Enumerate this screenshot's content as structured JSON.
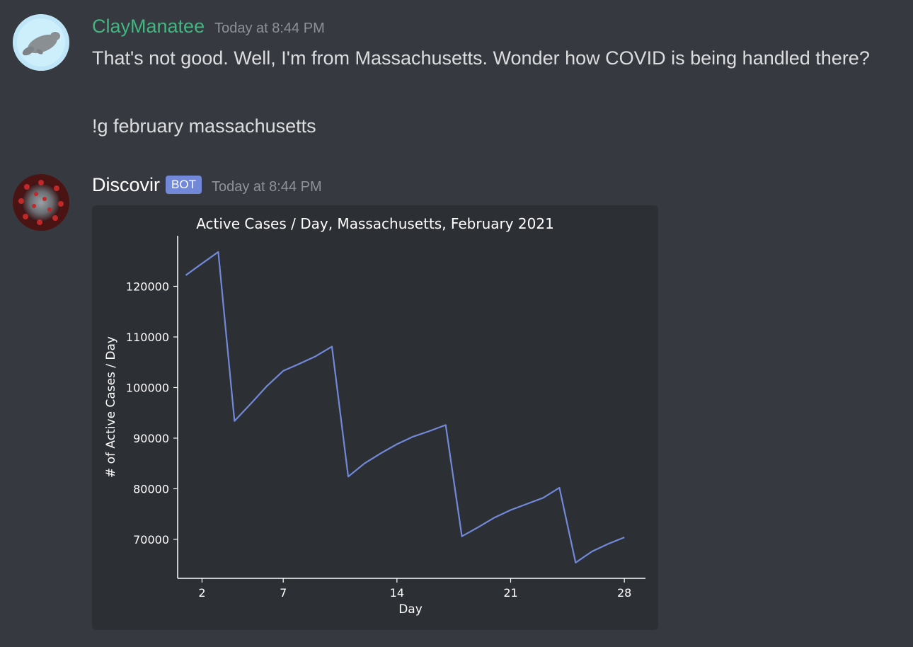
{
  "messages": [
    {
      "username": "ClayManatee",
      "username_color": "#43b581",
      "timestamp": "Today at 8:44 PM",
      "lines": [
        "That's not good. Well, I'm from Massachusetts. Wonder how COVID is being handled there?",
        "!g february massachusetts"
      ],
      "avatar_icon": "manatee-icon"
    },
    {
      "username": "Discovir",
      "username_color": "#ffffff",
      "badge": "BOT",
      "timestamp": "Today at 8:44 PM",
      "avatar_icon": "coronavirus-icon"
    }
  ],
  "chart_data": {
    "type": "line",
    "title": "Active Cases / Day, Massachusetts, February 2021",
    "xlabel": "Day",
    "ylabel": "# of Active Cases / Day",
    "xticks": [
      2,
      7,
      14,
      21,
      28
    ],
    "yticks": [
      70000,
      80000,
      90000,
      100000,
      110000,
      120000
    ],
    "xlim": [
      0.5,
      29.3
    ],
    "ylim": [
      62300,
      130000
    ],
    "line_color": "#7289da",
    "grid": false,
    "series": [
      {
        "x": [
          1,
          2,
          3,
          4,
          5,
          6,
          7,
          8,
          9,
          10,
          11,
          12,
          13,
          14,
          15,
          16,
          17,
          18,
          19,
          20,
          21,
          22,
          23,
          24,
          25,
          26,
          27,
          28
        ],
        "values": [
          122200,
          124500,
          126800,
          93400,
          96800,
          100300,
          103300,
          104700,
          106200,
          108100,
          82400,
          85000,
          87000,
          88800,
          90300,
          91400,
          92600,
          70600,
          72400,
          74300,
          75800,
          77000,
          78200,
          80200,
          65400,
          67600,
          69100,
          70400
        ]
      }
    ]
  }
}
